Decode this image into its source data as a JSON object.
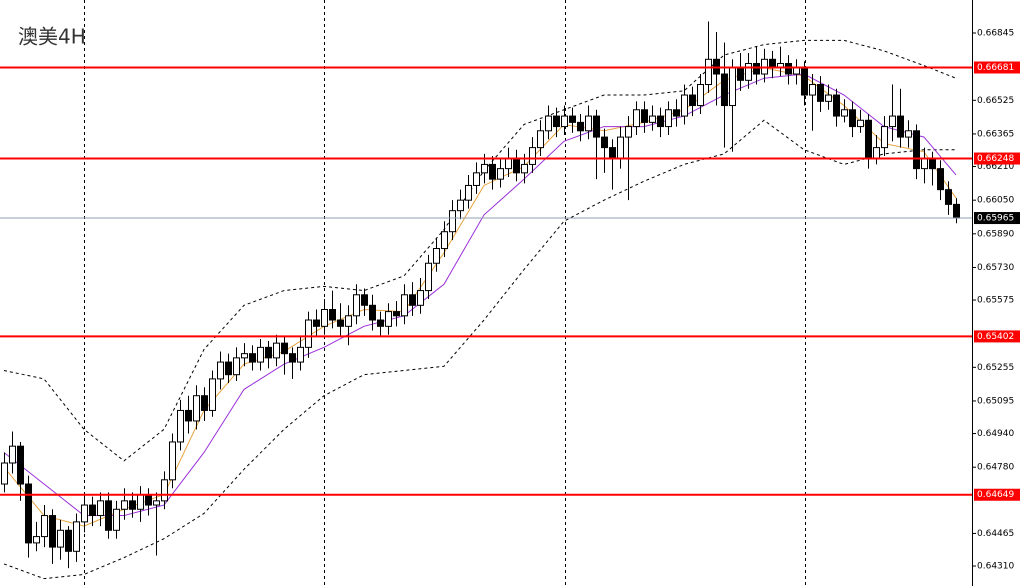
{
  "chart_data": {
    "type": "candlestick",
    "title": "澳美4H",
    "ylim": [
      0.64215,
      0.67002
    ],
    "yticks": [
      {
        "value": 0.66845,
        "label": "0.66845"
      },
      {
        "value": 0.66525,
        "label": "0.66525"
      },
      {
        "value": 0.66365,
        "label": "0.66365"
      },
      {
        "value": 0.6621,
        "label": "0.66210"
      },
      {
        "value": 0.6605,
        "label": "0.66050"
      },
      {
        "value": 0.6589,
        "label": "0.65890"
      },
      {
        "value": 0.6573,
        "label": "0.65730"
      },
      {
        "value": 0.65575,
        "label": "0.65575"
      },
      {
        "value": 0.65255,
        "label": "0.65255"
      },
      {
        "value": 0.65095,
        "label": "0.65095"
      },
      {
        "value": 0.6494,
        "label": "0.64940"
      },
      {
        "value": 0.6478,
        "label": "0.64780"
      },
      {
        "value": 0.64465,
        "label": "0.64465"
      },
      {
        "value": 0.6431,
        "label": "0.64310"
      }
    ],
    "up_color": "#ffffff",
    "down_color": "#000000",
    "open": [
      0.647,
      0.648,
      0.6488,
      0.647,
      0.6442,
      0.6445,
      0.6455,
      0.644,
      0.6448,
      0.6438,
      0.6452,
      0.646,
      0.6455,
      0.6462,
      0.6448,
      0.6458,
      0.6462,
      0.6458,
      0.6465,
      0.646,
      0.6462,
      0.6472,
      0.649,
      0.6505,
      0.65,
      0.6512,
      0.6505,
      0.652,
      0.6528,
      0.6522,
      0.653,
      0.6532,
      0.6528,
      0.6535,
      0.653,
      0.6537,
      0.6532,
      0.6528,
      0.6535,
      0.6548,
      0.6545,
      0.6553,
      0.6548,
      0.6545,
      0.655,
      0.656,
      0.6555,
      0.6548,
      0.6545,
      0.6552,
      0.655,
      0.656,
      0.6555,
      0.6562,
      0.6575,
      0.6582,
      0.659,
      0.66,
      0.6605,
      0.6612,
      0.6618,
      0.6622,
      0.6615,
      0.662,
      0.6625,
      0.6618,
      0.6622,
      0.663,
      0.6638,
      0.6645,
      0.664,
      0.6645,
      0.6642,
      0.6638,
      0.6645,
      0.6635,
      0.663,
      0.6625,
      0.6635,
      0.664,
      0.6648,
      0.6642,
      0.6645,
      0.664,
      0.6648,
      0.6645,
      0.6655,
      0.665,
      0.666,
      0.6672,
      0.6665,
      0.665,
      0.6668,
      0.6662,
      0.667,
      0.6665,
      0.6672,
      0.6668,
      0.667,
      0.6665,
      0.6668,
      0.6655,
      0.666,
      0.6652,
      0.6655,
      0.6645,
      0.6648,
      0.664,
      0.6643,
      0.6625,
      0.663,
      0.664,
      0.6645,
      0.6635,
      0.6638,
      0.662,
      0.6625,
      0.662,
      0.661,
      0.6603
    ],
    "high": [
      0.6485,
      0.6495,
      0.649,
      0.6474,
      0.6452,
      0.646,
      0.6458,
      0.6453,
      0.645,
      0.6456,
      0.6465,
      0.6464,
      0.6466,
      0.6466,
      0.6462,
      0.6468,
      0.6466,
      0.6469,
      0.6468,
      0.6466,
      0.6476,
      0.6494,
      0.651,
      0.6512,
      0.6517,
      0.6516,
      0.6524,
      0.6533,
      0.6532,
      0.6535,
      0.6537,
      0.6536,
      0.6539,
      0.6538,
      0.6541,
      0.654,
      0.6535,
      0.654,
      0.6552,
      0.6553,
      0.6558,
      0.6562,
      0.6556,
      0.6555,
      0.6565,
      0.6563,
      0.656,
      0.6552,
      0.6556,
      0.6557,
      0.6565,
      0.6566,
      0.6568,
      0.6579,
      0.6587,
      0.6595,
      0.6605,
      0.661,
      0.6617,
      0.6623,
      0.6627,
      0.6626,
      0.6625,
      0.663,
      0.6629,
      0.6627,
      0.6635,
      0.6643,
      0.665,
      0.6649,
      0.665,
      0.6649,
      0.6646,
      0.665,
      0.6648,
      0.6639,
      0.6634,
      0.664,
      0.6645,
      0.6652,
      0.6652,
      0.665,
      0.6649,
      0.6652,
      0.6653,
      0.666,
      0.6659,
      0.6665,
      0.669,
      0.6685,
      0.668,
      0.6672,
      0.6675,
      0.6675,
      0.6678,
      0.6677,
      0.6676,
      0.6678,
      0.6674,
      0.6672,
      0.6671,
      0.6665,
      0.6664,
      0.666,
      0.6658,
      0.6653,
      0.6652,
      0.6648,
      0.6646,
      0.6636,
      0.6645,
      0.666,
      0.6658,
      0.6643,
      0.6641,
      0.663,
      0.6628,
      0.6624,
      0.6614,
      0.6606
    ],
    "low": [
      0.6466,
      0.6475,
      0.6462,
      0.6435,
      0.6438,
      0.644,
      0.6432,
      0.6434,
      0.643,
      0.6433,
      0.6447,
      0.645,
      0.645,
      0.6444,
      0.6444,
      0.6453,
      0.6454,
      0.6452,
      0.6455,
      0.6436,
      0.6458,
      0.6468,
      0.6486,
      0.6494,
      0.6496,
      0.65,
      0.6502,
      0.6515,
      0.6518,
      0.6519,
      0.6526,
      0.6524,
      0.6524,
      0.6525,
      0.6526,
      0.6522,
      0.652,
      0.6524,
      0.653,
      0.654,
      0.6541,
      0.6544,
      0.654,
      0.6536,
      0.6546,
      0.655,
      0.6543,
      0.654,
      0.6541,
      0.6545,
      0.6546,
      0.655,
      0.6551,
      0.6558,
      0.6571,
      0.6578,
      0.6586,
      0.6596,
      0.6601,
      0.6608,
      0.6613,
      0.661,
      0.6611,
      0.6616,
      0.6614,
      0.6613,
      0.6618,
      0.6626,
      0.6634,
      0.6635,
      0.6636,
      0.6637,
      0.6633,
      0.6634,
      0.6615,
      0.6618,
      0.661,
      0.662,
      0.6605,
      0.6636,
      0.6637,
      0.6638,
      0.6635,
      0.6636,
      0.664,
      0.6641,
      0.6645,
      0.6646,
      0.6656,
      0.665,
      0.663,
      0.6628,
      0.6657,
      0.6658,
      0.666,
      0.6661,
      0.6663,
      0.6664,
      0.666,
      0.666,
      0.665,
      0.6638,
      0.6647,
      0.6648,
      0.664,
      0.6642,
      0.6635,
      0.6637,
      0.662,
      0.6622,
      0.6626,
      0.6633,
      0.663,
      0.663,
      0.6615,
      0.6613,
      0.6612,
      0.6605,
      0.6598,
      0.6594
    ],
    "close": [
      0.648,
      0.6488,
      0.647,
      0.6442,
      0.6445,
      0.6455,
      0.644,
      0.6448,
      0.6438,
      0.6452,
      0.646,
      0.6455,
      0.6462,
      0.6448,
      0.6458,
      0.6462,
      0.6458,
      0.6465,
      0.646,
      0.6462,
      0.6472,
      0.649,
      0.6505,
      0.65,
      0.6512,
      0.6505,
      0.652,
      0.6528,
      0.6522,
      0.653,
      0.6532,
      0.6528,
      0.6535,
      0.653,
      0.6537,
      0.6532,
      0.6528,
      0.6535,
      0.6548,
      0.6545,
      0.6553,
      0.6548,
      0.6545,
      0.655,
      0.656,
      0.6555,
      0.6548,
      0.6545,
      0.6552,
      0.655,
      0.656,
      0.6555,
      0.6562,
      0.6575,
      0.6582,
      0.659,
      0.66,
      0.6605,
      0.6612,
      0.6618,
      0.6622,
      0.6615,
      0.662,
      0.6625,
      0.6618,
      0.6622,
      0.663,
      0.6638,
      0.6645,
      0.664,
      0.6645,
      0.6642,
      0.6638,
      0.6645,
      0.6635,
      0.663,
      0.6625,
      0.6635,
      0.664,
      0.6648,
      0.6642,
      0.6645,
      0.664,
      0.6648,
      0.6645,
      0.6655,
      0.665,
      0.666,
      0.6672,
      0.6665,
      0.665,
      0.6668,
      0.6662,
      0.667,
      0.6665,
      0.6672,
      0.6668,
      0.667,
      0.6665,
      0.6668,
      0.6655,
      0.666,
      0.6652,
      0.6655,
      0.6645,
      0.6648,
      0.664,
      0.6643,
      0.6625,
      0.663,
      0.664,
      0.6645,
      0.6635,
      0.6638,
      0.662,
      0.6625,
      0.662,
      0.661,
      0.6603,
      0.65965
    ],
    "lines": [
      {
        "color": "#000000",
        "style": "dashed",
        "x": [
          0,
          5,
          10,
          15,
          20,
          25,
          30,
          35,
          40,
          45,
          50,
          55,
          60,
          65,
          70,
          75,
          80,
          85,
          90,
          95,
          100,
          105,
          110,
          115,
          119
        ],
        "values": [
          0.6524,
          0.652,
          0.6496,
          0.6481,
          0.6496,
          0.6534,
          0.6555,
          0.6562,
          0.6564,
          0.6562,
          0.6569,
          0.6591,
          0.6619,
          0.6641,
          0.6648,
          0.6655,
          0.6655,
          0.6657,
          0.6674,
          0.6679,
          0.6681,
          0.6681,
          0.6676,
          0.6669,
          0.6663
        ]
      },
      {
        "color": "#000000",
        "style": "dashed",
        "x": [
          0,
          5,
          10,
          15,
          20,
          25,
          30,
          35,
          40,
          45,
          50,
          55,
          60,
          65,
          70,
          75,
          80,
          85,
          90,
          95,
          100,
          105,
          110,
          115,
          119
        ],
        "values": [
          0.6432,
          0.6425,
          0.6427,
          0.6435,
          0.6444,
          0.6456,
          0.6477,
          0.6496,
          0.6512,
          0.6522,
          0.6524,
          0.6526,
          0.6548,
          0.6572,
          0.6595,
          0.6605,
          0.6614,
          0.6622,
          0.6627,
          0.6643,
          0.6629,
          0.6622,
          0.6627,
          0.6629,
          0.6629
        ]
      },
      {
        "color": "#e8a33c",
        "style": "solid",
        "x": [
          0,
          5,
          10,
          15,
          20,
          25,
          30,
          35,
          40,
          45,
          50,
          55,
          60,
          65,
          70,
          75,
          80,
          85,
          90,
          95,
          100,
          105,
          110,
          115,
          119
        ],
        "values": [
          0.6478,
          0.6455,
          0.645,
          0.6458,
          0.6465,
          0.6505,
          0.6527,
          0.6533,
          0.6545,
          0.6553,
          0.6552,
          0.658,
          0.6612,
          0.6621,
          0.6641,
          0.6638,
          0.6642,
          0.6648,
          0.6662,
          0.6668,
          0.6664,
          0.665,
          0.6632,
          0.6628,
          0.6606
        ]
      },
      {
        "color": "#9b30d9",
        "style": "solid",
        "x": [
          0,
          5,
          10,
          15,
          20,
          25,
          30,
          35,
          40,
          45,
          50,
          55,
          60,
          65,
          70,
          75,
          80,
          85,
          90,
          95,
          100,
          105,
          110,
          115,
          119
        ],
        "values": [
          0.6485,
          0.647,
          0.6455,
          0.6455,
          0.646,
          0.6485,
          0.6515,
          0.6527,
          0.6535,
          0.6545,
          0.655,
          0.6565,
          0.6598,
          0.6615,
          0.6633,
          0.664,
          0.664,
          0.6645,
          0.6655,
          0.6663,
          0.6665,
          0.6655,
          0.664,
          0.6635,
          0.6617
        ]
      }
    ],
    "levels": [
      {
        "value": 0.66681,
        "color": "#ff0000"
      },
      {
        "value": 0.66248,
        "color": "#ff0000"
      },
      {
        "value": 0.65402,
        "color": "#ff0000"
      },
      {
        "value": 0.64649,
        "color": "#ff0000"
      }
    ],
    "current": {
      "value": 0.65965,
      "color": "#8fa0b0"
    }
  }
}
